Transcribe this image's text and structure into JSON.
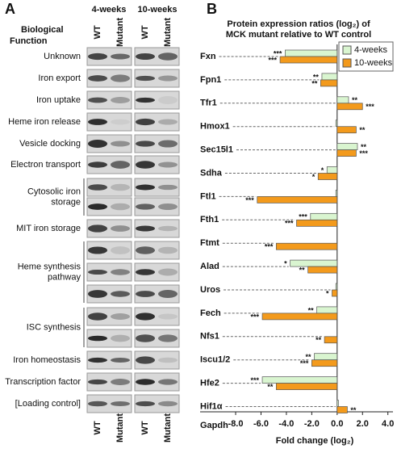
{
  "panel_a": {
    "letter": "A",
    "heading": [
      "Biological",
      "Function"
    ],
    "columns": [
      "4-weeks",
      "10-weeks"
    ],
    "lanes": [
      "WT",
      "Mutant",
      "WT",
      "Mutant"
    ],
    "rows": [
      [
        "Unknown"
      ],
      [
        "Iron export"
      ],
      [
        "Iron uptake"
      ],
      [
        "Heme iron release"
      ],
      [
        "Vesicle docking"
      ],
      [
        "Electron transport"
      ],
      [
        "Cytosolic iron",
        "storage"
      ],
      [
        "MIT iron storage"
      ],
      [
        "Heme synthesis",
        "pathway"
      ],
      [
        "ISC synthesis"
      ],
      [
        "Iron homeostasis"
      ],
      [
        "Transcription factor"
      ],
      [
        "[Loading control]"
      ]
    ]
  },
  "chart_data": {
    "type": "hbar",
    "letter": "B",
    "title": [
      "Protein expression ratios (log₂) of",
      "MCK mutant relative to WT control"
    ],
    "x_label": "Fold change (log₂)",
    "categories": [
      "Fxn",
      "Fpn1",
      "Tfr1",
      "Hmox1",
      "Sec15l1",
      "Sdha",
      "Ftl1",
      "Fth1",
      "Ftmt",
      "Alad",
      "Uros",
      "Fech",
      "Nfs1",
      "Iscu1/2",
      "Hfe2",
      "Hif1α",
      "Gapdh"
    ],
    "series": [
      {
        "name": "4-weeks",
        "color": "#d9f5d0",
        "values": [
          -4.1,
          -1.2,
          0.9,
          -0.1,
          1.6,
          -0.8,
          -0.1,
          -2.1,
          0,
          -3.7,
          -0.1,
          -1.6,
          0,
          -1.8,
          -5.9,
          0.1,
          null
        ],
        "significance": [
          "***",
          "**",
          "**",
          null,
          "**",
          "*",
          null,
          "***",
          null,
          "*",
          null,
          "**",
          null,
          "**",
          "***",
          null,
          null
        ]
      },
      {
        "name": "10-weeks",
        "color": "#f39a1c",
        "values": [
          -4.5,
          -1.3,
          2.0,
          1.5,
          1.5,
          -1.5,
          -6.3,
          -3.2,
          -4.8,
          -2.3,
          -0.4,
          -5.9,
          -1.0,
          -2.0,
          -4.8,
          0.8,
          null
        ],
        "significance": [
          "***",
          "**",
          "***",
          "**",
          "***",
          "*",
          "***",
          "***",
          "***",
          "**",
          "*",
          "***",
          "**",
          "***",
          "**",
          "**",
          null
        ]
      }
    ],
    "xlim": [
      -10.8,
      4.4
    ],
    "xticks": [
      {
        "value": -8,
        "label": "-8.0"
      },
      {
        "value": -6,
        "label": "-6.0"
      },
      {
        "value": -4,
        "label": "-4.0"
      },
      {
        "value": -2,
        "label": "-2.0"
      },
      {
        "value": 0,
        "label": "0.0"
      },
      {
        "value": 2,
        "label": "2.0"
      },
      {
        "value": 4,
        "label": "4.0"
      }
    ],
    "legend": "top-right"
  }
}
